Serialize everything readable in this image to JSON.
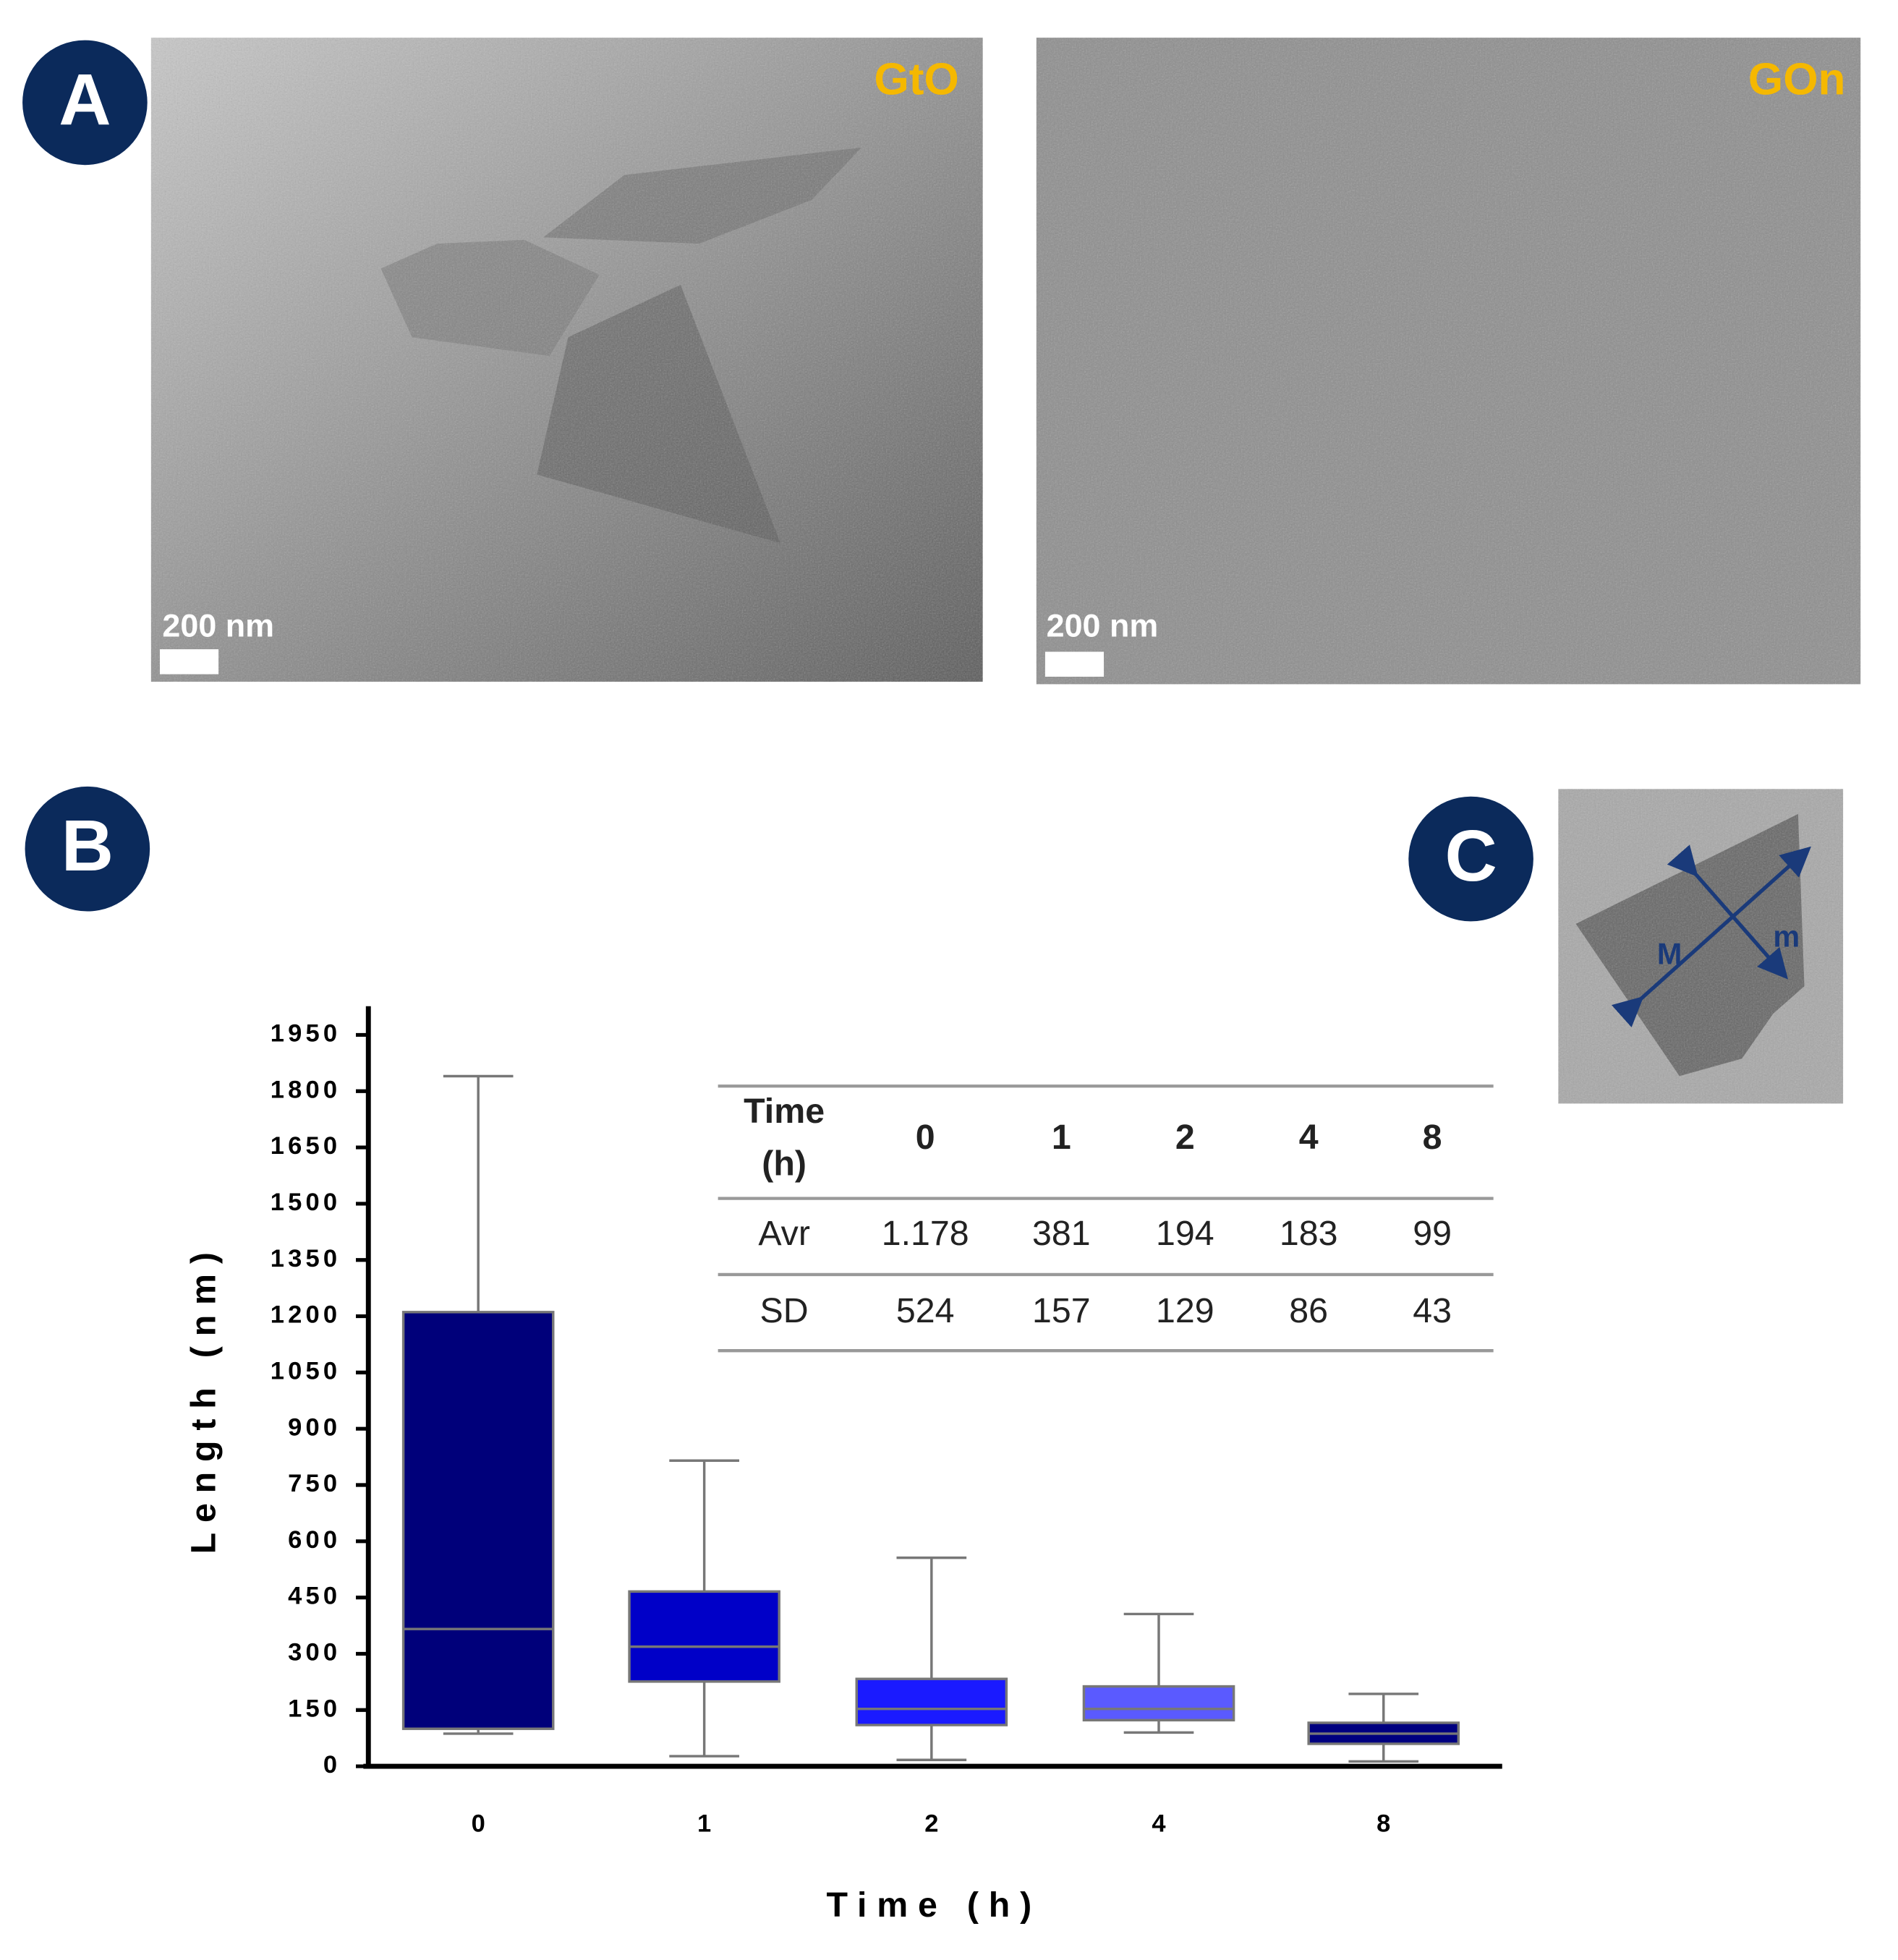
{
  "panels": {
    "a": {
      "label": "A",
      "images": [
        {
          "label": "GtO",
          "scale": "200 nm"
        },
        {
          "label": "GOn",
          "scale": "200 nm"
        }
      ]
    },
    "b": {
      "label": "B"
    },
    "c": {
      "label": "C",
      "major": "M",
      "minor": "m"
    }
  },
  "chart_data": {
    "type": "box",
    "xlabel": "Time (h)",
    "ylabel": "Length (nm)",
    "categories": [
      "0",
      "1",
      "2",
      "4",
      "8"
    ],
    "boxes": [
      {
        "min": 87,
        "q1": 100,
        "median": 366,
        "q3": 1211,
        "max": 1840,
        "color": "#00007a"
      },
      {
        "min": 27,
        "q1": 226,
        "median": 319,
        "q3": 466,
        "max": 815,
        "color": "#0000c8"
      },
      {
        "min": 17,
        "q1": 110,
        "median": 153,
        "q3": 233,
        "max": 556,
        "color": "#1a1aff"
      },
      {
        "min": 90,
        "q1": 123,
        "median": 153,
        "q3": 213,
        "max": 406,
        "color": "#5a5aff"
      },
      {
        "min": 13,
        "q1": 60,
        "median": 87,
        "q3": 116,
        "max": 193,
        "color": "#000080"
      }
    ],
    "ylim": [
      0,
      2000
    ],
    "yticks": [
      0,
      150,
      300,
      450,
      600,
      750,
      900,
      1050,
      1200,
      1350,
      1500,
      1650,
      1800,
      1950
    ]
  },
  "table": {
    "header": [
      "Time (h)",
      "0",
      "1",
      "2",
      "4",
      "8"
    ],
    "rows": [
      [
        "Avr",
        "1.178",
        "381",
        "194",
        "183",
        "99"
      ],
      [
        "SD",
        "524",
        "157",
        "129",
        "86",
        "43"
      ]
    ]
  }
}
